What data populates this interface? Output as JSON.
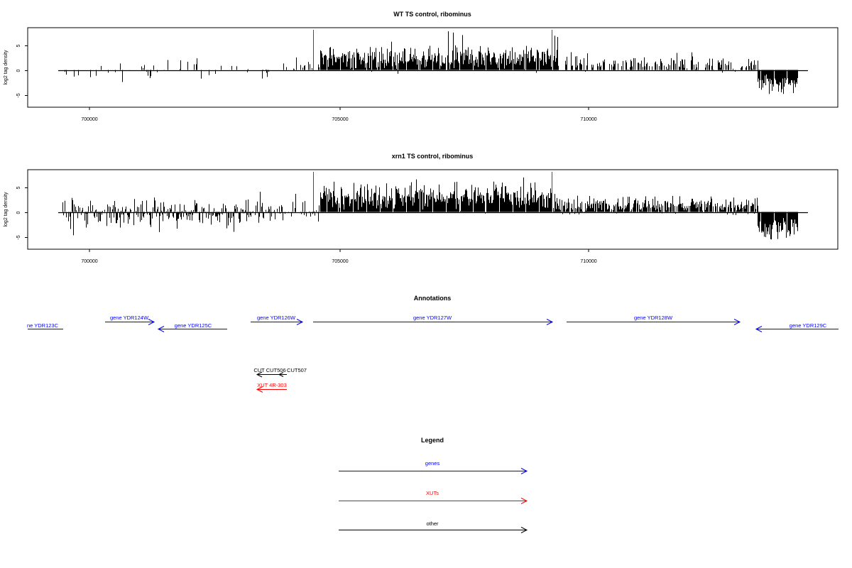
{
  "panels": [
    {
      "title": "WT TS control, ribominus",
      "ylabel": "log2 tag density",
      "yticks": [
        "-5",
        "0",
        "5"
      ],
      "xticks": [
        "700000",
        "705000",
        "710000"
      ]
    },
    {
      "title": "xrn1 TS control, ribominus",
      "ylabel": "log2 tag density",
      "yticks": [
        "-5",
        "0",
        "5"
      ],
      "xticks": [
        "700000",
        "705000",
        "710000"
      ]
    }
  ],
  "annotations": {
    "title": "Annotations",
    "genes": [
      {
        "label": "ne YDR123C"
      },
      {
        "label": "gene YDR124W"
      },
      {
        "label": "gene YDR125C"
      },
      {
        "label": "gene YDR126W"
      },
      {
        "label": "gene YDR127W"
      },
      {
        "label": "gene YDR128W"
      },
      {
        "label": "gene YDR129C"
      }
    ],
    "cuts": [
      {
        "label": "CUT CUT506"
      },
      {
        "label": "CUT507"
      }
    ],
    "xuts": [
      {
        "label": "XUT 4R-303"
      }
    ]
  },
  "legend": {
    "title": "Legend",
    "items": [
      {
        "label": "genes",
        "color": "#0000ff"
      },
      {
        "label": "XUTs",
        "color": "#ff0000"
      },
      {
        "label": "other",
        "color": "#000000"
      }
    ]
  },
  "colors": {
    "gene": "#0000ff",
    "xut": "#ff0000",
    "other": "#000000",
    "marker": "#ff0000",
    "bars": "#000000"
  },
  "chart_data": [
    {
      "type": "bar",
      "title": "WT TS control, ribominus",
      "ylabel": "log2 tag density",
      "xlim": [
        698600,
        714800
      ],
      "ylim": [
        -7.5,
        8.5
      ],
      "xticks": [
        700000,
        705000,
        710000
      ],
      "yticks": [
        -5,
        0,
        5
      ],
      "marker_lines_x": [
        704450,
        709200
      ],
      "baseline_x_range": [
        699300,
        714000
      ],
      "regions": [
        {
          "x_range": [
            699300,
            700000
          ],
          "mean": -0.6,
          "spread": 1.5,
          "density": 0.12
        },
        {
          "x_range": [
            700000,
            703700
          ],
          "mean": 0.0,
          "spread": 1.8,
          "density": 0.18
        },
        {
          "x_range": [
            703700,
            704450
          ],
          "mean": 0.8,
          "spread": 1.2,
          "density": 0.3
        },
        {
          "x_range": [
            704450,
            709200
          ],
          "mean": 2.3,
          "spread": 2.4,
          "density": 1.0
        },
        {
          "x_range": [
            709200,
            713200
          ],
          "mean": 1.2,
          "spread": 1.4,
          "density": 0.55
        },
        {
          "x_range": [
            713200,
            714000
          ],
          "mean": -2.6,
          "spread": 1.8,
          "density": 1.0
        }
      ]
    },
    {
      "type": "bar",
      "title": "xrn1 TS control, ribominus",
      "ylabel": "log2 tag density",
      "xlim": [
        698600,
        714800
      ],
      "ylim": [
        -7.5,
        8.5
      ],
      "xticks": [
        700000,
        705000,
        710000
      ],
      "yticks": [
        -5,
        0,
        5
      ],
      "marker_lines_x": [
        704450,
        709200
      ],
      "baseline_x_range": [
        699300,
        714000
      ],
      "regions": [
        {
          "x_range": [
            699300,
            703700
          ],
          "mean": -0.2,
          "spread": 2.6,
          "density": 0.8
        },
        {
          "x_range": [
            703700,
            704450
          ],
          "mean": 0.2,
          "spread": 2.4,
          "density": 0.5
        },
        {
          "x_range": [
            704450,
            709200
          ],
          "mean": 3.0,
          "spread": 2.6,
          "density": 1.0
        },
        {
          "x_range": [
            709200,
            713200
          ],
          "mean": 1.3,
          "spread": 1.6,
          "density": 0.9
        },
        {
          "x_range": [
            713200,
            714000
          ],
          "mean": -3.5,
          "spread": 2.2,
          "density": 1.0
        }
      ]
    }
  ]
}
